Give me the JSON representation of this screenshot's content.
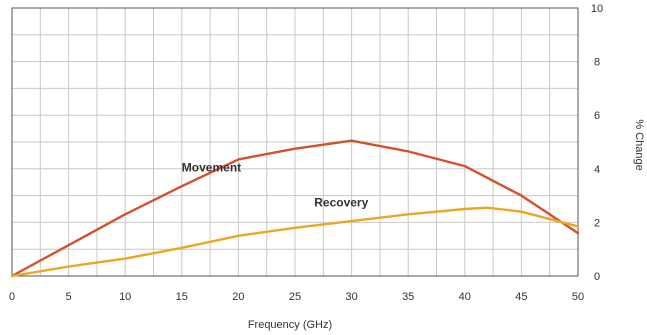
{
  "chart_data": {
    "type": "line",
    "xlabel": "Frequency (GHz)",
    "ylabel": "% Change",
    "xlim": [
      0,
      50
    ],
    "ylim": [
      0,
      10
    ],
    "x_ticks": [
      "0",
      "5",
      "10",
      "15",
      "20",
      "25",
      "30",
      "35",
      "40",
      "45",
      "50"
    ],
    "y_ticks": [
      "0",
      "2",
      "4",
      "6",
      "8",
      "10"
    ],
    "y_axis_side": "right",
    "grid": true,
    "legend": "none",
    "series": [
      {
        "name": "Movement",
        "color": "#d2522b",
        "x": [
          0,
          5,
          10,
          15,
          20,
          25,
          30,
          35,
          40,
          45,
          50
        ],
        "y": [
          0,
          1.15,
          2.3,
          3.35,
          4.35,
          4.75,
          5.05,
          4.65,
          4.1,
          3.0,
          1.6
        ]
      },
      {
        "name": "Recovery",
        "color": "#e8a823",
        "x": [
          0,
          5,
          10,
          15,
          20,
          25,
          30,
          35,
          40,
          42,
          45,
          50
        ],
        "y": [
          0,
          0.35,
          0.65,
          1.05,
          1.5,
          1.8,
          2.05,
          2.3,
          2.5,
          2.55,
          2.4,
          1.85
        ]
      }
    ]
  }
}
